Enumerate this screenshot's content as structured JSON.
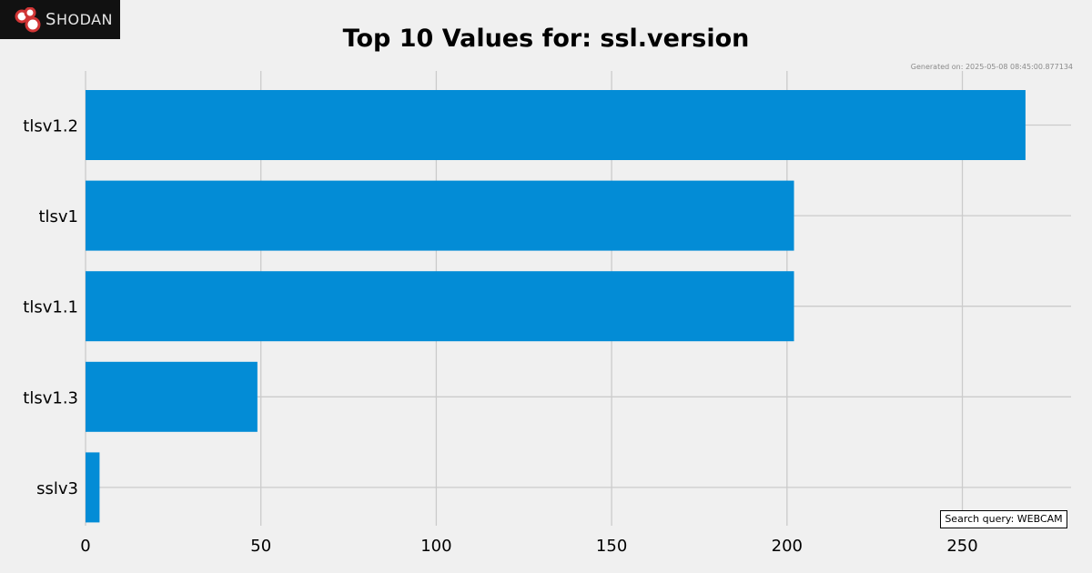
{
  "logo": {
    "text_first": "S",
    "text_rest": "HODAN",
    "icon": "shodan-logo-icon"
  },
  "generated_text": "Generated on: 2025-05-08 08:45:00.877134",
  "search_query_text": "Search query: WEBCAM",
  "colors": {
    "bar": "#038cd6",
    "background": "#f0f0f0",
    "grid": "#cbcbcb"
  },
  "chart_data": {
    "type": "bar",
    "orientation": "horizontal",
    "title": "Top 10 Values for: ssl.version",
    "categories": [
      "tlsv1.2",
      "tlsv1",
      "tlsv1.1",
      "tlsv1.3",
      "sslv3"
    ],
    "values": [
      268,
      202,
      202,
      49,
      4
    ],
    "xticks": [
      0,
      50,
      100,
      150,
      200,
      250
    ],
    "xlim": [
      0,
      281
    ],
    "grid": true
  }
}
